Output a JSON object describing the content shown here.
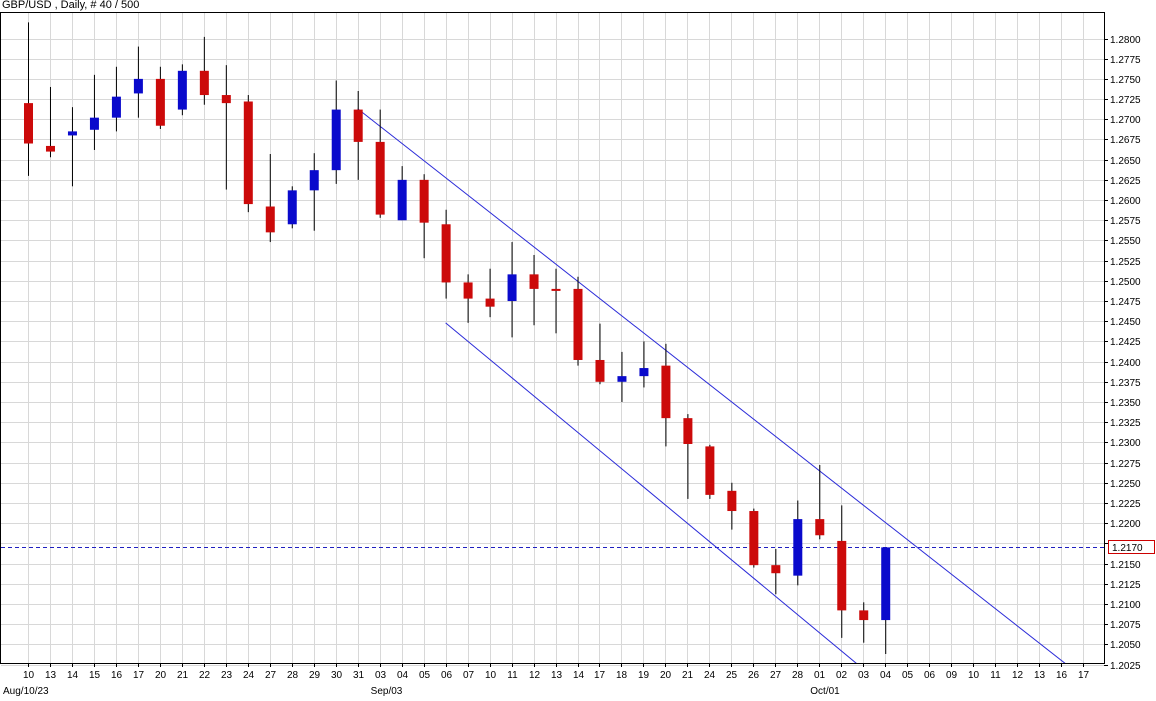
{
  "header": {
    "title": "GBP/USD , Daily, # 40 / 500"
  },
  "colors": {
    "up": "#0a0acc",
    "down": "#cc0a0a",
    "grid": "#d8d8d8",
    "channel": "#2a2ad8",
    "price_line": "#2020c0",
    "price_badge_border": "#cc0000"
  },
  "chart_data": {
    "type": "candlestick",
    "symbol": "GBP/USD",
    "timeframe": "Daily",
    "y_axis": {
      "range": [
        1.2025,
        1.2825
      ],
      "ticks": [
        "1.2800",
        "1.2775",
        "1.2750",
        "1.2725",
        "1.2700",
        "1.2675",
        "1.2650",
        "1.2625",
        "1.2600",
        "1.2575",
        "1.2550",
        "1.2525",
        "1.2500",
        "1.2475",
        "1.2450",
        "1.2425",
        "1.2400",
        "1.2375",
        "1.2350",
        "1.2325",
        "1.2300",
        "1.2275",
        "1.2250",
        "1.2225",
        "1.2200",
        "1.2175",
        "1.2150",
        "1.2125",
        "1.2100",
        "1.2075",
        "1.2050",
        "1.2025"
      ]
    },
    "x_axis": {
      "day_labels": [
        "10",
        "13",
        "14",
        "15",
        "16",
        "17",
        "20",
        "21",
        "22",
        "23",
        "24",
        "27",
        "28",
        "29",
        "30",
        "31",
        "03",
        "04",
        "05",
        "06",
        "07",
        "10",
        "11",
        "12",
        "13",
        "14",
        "17",
        "18",
        "19",
        "20",
        "21",
        "24",
        "25",
        "26",
        "27",
        "28",
        "01",
        "02",
        "03",
        "04",
        "05",
        "06",
        "09",
        "10",
        "11",
        "12",
        "13",
        "16",
        "17"
      ],
      "period_labels": [
        {
          "text": "Aug/10/23",
          "index": 0
        },
        {
          "text": "Sep/03",
          "index": 16
        },
        {
          "text": "Oct/01",
          "index": 36
        }
      ]
    },
    "current_price": "1.2170",
    "candles": [
      {
        "label": "10",
        "open": 1.272,
        "high": 1.282,
        "low": 1.263,
        "close": 1.267
      },
      {
        "label": "13",
        "open": 1.2667,
        "high": 1.274,
        "low": 1.2653,
        "close": 1.266
      },
      {
        "label": "14",
        "open": 1.268,
        "high": 1.2715,
        "low": 1.2617,
        "close": 1.2685
      },
      {
        "label": "15",
        "open": 1.2687,
        "high": 1.2755,
        "low": 1.2662,
        "close": 1.2702
      },
      {
        "label": "16",
        "open": 1.2702,
        "high": 1.2765,
        "low": 1.2685,
        "close": 1.2728
      },
      {
        "label": "17",
        "open": 1.2732,
        "high": 1.279,
        "low": 1.2702,
        "close": 1.275
      },
      {
        "label": "20",
        "open": 1.275,
        "high": 1.2765,
        "low": 1.2688,
        "close": 1.2692
      },
      {
        "label": "21",
        "open": 1.2712,
        "high": 1.2768,
        "low": 1.2705,
        "close": 1.276
      },
      {
        "label": "22",
        "open": 1.276,
        "high": 1.2802,
        "low": 1.2718,
        "close": 1.273
      },
      {
        "label": "23",
        "open": 1.273,
        "high": 1.2767,
        "low": 1.2613,
        "close": 1.272
      },
      {
        "label": "24",
        "open": 1.2722,
        "high": 1.273,
        "low": 1.2585,
        "close": 1.2595
      },
      {
        "label": "27",
        "open": 1.2592,
        "high": 1.2657,
        "low": 1.2548,
        "close": 1.256
      },
      {
        "label": "28",
        "open": 1.257,
        "high": 1.2617,
        "low": 1.2565,
        "close": 1.2612
      },
      {
        "label": "29",
        "open": 1.2612,
        "high": 1.2658,
        "low": 1.2562,
        "close": 1.2637
      },
      {
        "label": "30",
        "open": 1.2637,
        "high": 1.2748,
        "low": 1.262,
        "close": 1.2712
      },
      {
        "label": "31",
        "open": 1.2712,
        "high": 1.2735,
        "low": 1.2625,
        "close": 1.2672
      },
      {
        "label": "03",
        "open": 1.2672,
        "high": 1.2712,
        "low": 1.2578,
        "close": 1.2582
      },
      {
        "label": "04",
        "open": 1.2575,
        "high": 1.2642,
        "low": 1.2575,
        "close": 1.2625
      },
      {
        "label": "05",
        "open": 1.2625,
        "high": 1.2632,
        "low": 1.2528,
        "close": 1.2572
      },
      {
        "label": "06",
        "open": 1.257,
        "high": 1.2588,
        "low": 1.2478,
        "close": 1.2498
      },
      {
        "label": "07",
        "open": 1.2498,
        "high": 1.2508,
        "low": 1.2448,
        "close": 1.2478
      },
      {
        "label": "10",
        "open": 1.2478,
        "high": 1.2515,
        "low": 1.2455,
        "close": 1.2468
      },
      {
        "label": "11",
        "open": 1.2475,
        "high": 1.2548,
        "low": 1.243,
        "close": 1.2508
      },
      {
        "label": "12",
        "open": 1.2508,
        "high": 1.2532,
        "low": 1.2445,
        "close": 1.249
      },
      {
        "label": "13",
        "open": 1.249,
        "high": 1.2515,
        "low": 1.2435,
        "close": 1.249
      },
      {
        "label": "14",
        "open": 1.249,
        "high": 1.2505,
        "low": 1.2395,
        "close": 1.2402
      },
      {
        "label": "17",
        "open": 1.2402,
        "high": 1.2447,
        "low": 1.2372,
        "close": 1.2375
      },
      {
        "label": "18",
        "open": 1.2375,
        "high": 1.2412,
        "low": 1.235,
        "close": 1.2382
      },
      {
        "label": "19",
        "open": 1.2382,
        "high": 1.2425,
        "low": 1.2368,
        "close": 1.2392
      },
      {
        "label": "20",
        "open": 1.2395,
        "high": 1.2422,
        "low": 1.2295,
        "close": 1.233
      },
      {
        "label": "21",
        "open": 1.233,
        "high": 1.2335,
        "low": 1.223,
        "close": 1.2298
      },
      {
        "label": "24",
        "open": 1.2295,
        "high": 1.2297,
        "low": 1.223,
        "close": 1.2235
      },
      {
        "label": "25",
        "open": 1.224,
        "high": 1.225,
        "low": 1.2192,
        "close": 1.2215
      },
      {
        "label": "26",
        "open": 1.2215,
        "high": 1.2218,
        "low": 1.2145,
        "close": 1.2148
      },
      {
        "label": "27",
        "open": 1.2148,
        "high": 1.2168,
        "low": 1.2112,
        "close": 1.2138
      },
      {
        "label": "28",
        "open": 1.2135,
        "high": 1.2228,
        "low": 1.2123,
        "close": 1.2205
      },
      {
        "label": "01",
        "open": 1.2205,
        "high": 1.2272,
        "low": 1.218,
        "close": 1.2185
      },
      {
        "label": "02",
        "open": 1.2178,
        "high": 1.2222,
        "low": 1.2058,
        "close": 1.2092
      },
      {
        "label": "03",
        "open": 1.2092,
        "high": 1.2102,
        "low": 1.2052,
        "close": 1.208
      },
      {
        "label": "04",
        "open": 1.208,
        "high": 1.217,
        "low": 1.2038,
        "close": 1.217
      }
    ],
    "channel_lines": [
      {
        "name": "upper",
        "points": [
          {
            "index": 15,
            "price": 1.2713
          },
          {
            "index": 47.25,
            "price": 1.2025
          }
        ]
      },
      {
        "name": "lower",
        "points": [
          {
            "index": 19,
            "price": 1.2448
          },
          {
            "index": 37.75,
            "price": 1.2025
          }
        ]
      }
    ],
    "grid": true
  }
}
